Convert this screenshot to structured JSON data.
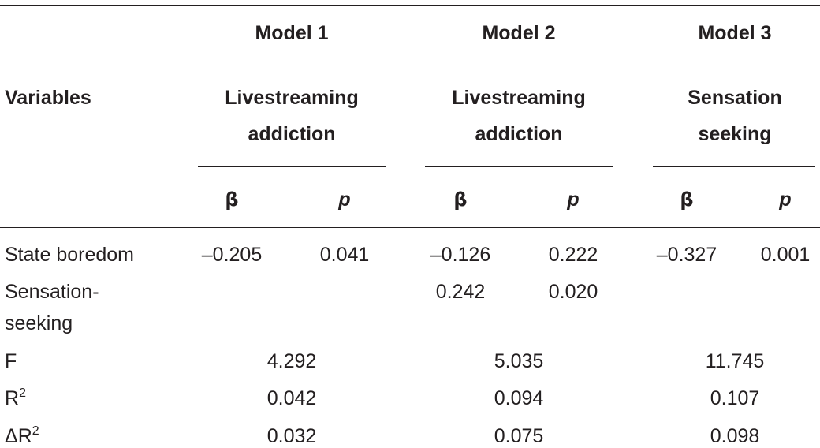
{
  "table": {
    "variables_header": "Variables",
    "models": [
      {
        "name": "Model 1",
        "dv_line1": "Livestreaming",
        "dv_line2": "addiction"
      },
      {
        "name": "Model 2",
        "dv_line1": "Livestreaming",
        "dv_line2": "addiction"
      },
      {
        "name": "Model 3",
        "dv_line1": "Sensation",
        "dv_line2": "seeking"
      }
    ],
    "beta_label": "β",
    "p_label": "p",
    "rows": [
      {
        "label": "State boredom",
        "m1_beta": "–0.205",
        "m1_p": "0.041",
        "m2_beta": "–0.126",
        "m2_p": "0.222",
        "m3_beta": "–0.327",
        "m3_p": "0.001"
      },
      {
        "label_line1": "Sensation-",
        "label_line2": "seeking",
        "m2_beta": "0.242",
        "m2_p": "0.020"
      }
    ],
    "stats": [
      {
        "label": "F",
        "m1": "4.292",
        "m2": "5.035",
        "m3": "11.745"
      },
      {
        "label": "R",
        "sup": "2",
        "m1": "0.042",
        "m2": "0.094",
        "m3": "0.107"
      },
      {
        "label": "ΔR",
        "sup": "2",
        "m1": "0.032",
        "m2": "0.075",
        "m3": "0.098"
      }
    ]
  }
}
